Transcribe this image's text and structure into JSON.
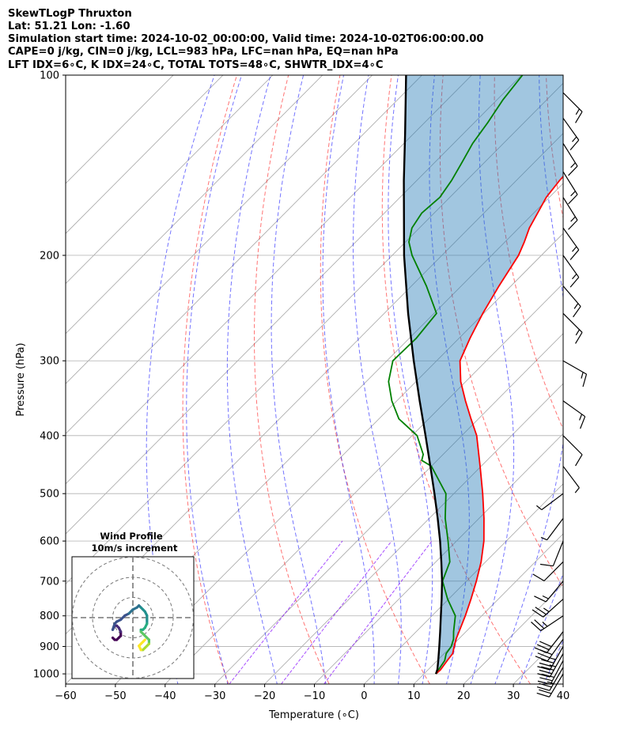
{
  "title_lines": [
    "SkewTLogP Thruxton",
    "Lat: 51.21   Lon: -1.60",
    "Simulation start time: 2024-10-02_00:00:00, Valid time: 2024-10-02T06:00:00.00",
    "CAPE=0 j/kg, CIN=0 j/kg, LCL=983 hPa, LFC=nan hPa, EQ=nan hPa",
    "LFT IDX=6∘C, K IDX=24∘C, TOTAL TOTS=48∘C, SHWTR_IDX=4∘C"
  ],
  "chart_data": {
    "type": "skewt-logp",
    "xlabel": "Temperature (∘C)",
    "ylabel": "Pressure (hPa)",
    "xlim": [
      -60,
      40
    ],
    "ylim": [
      1040,
      100
    ],
    "x_ticks": [
      -60,
      -50,
      -40,
      -30,
      -20,
      -10,
      0,
      10,
      20,
      30,
      40
    ],
    "x_tick_labels": [
      "−60",
      "−50",
      "−40",
      "−30",
      "−20",
      "−10",
      "0",
      "10",
      "20",
      "30",
      "40"
    ],
    "y_ticks": [
      1000,
      900,
      800,
      700,
      600,
      500,
      400,
      300,
      200,
      100
    ],
    "y_tick_labels": [
      "1000",
      "900",
      "800",
      "700",
      "600",
      "500",
      "400",
      "300",
      "200",
      "100"
    ],
    "grid": true,
    "colors": {
      "temperature": "#ff0000",
      "dewpoint": "#008000",
      "parcel": "#000000",
      "cin_cape_fill": "#1f77b4",
      "dry_adiabats": "#ff0000",
      "moist_adiabats": "#0000ff",
      "mixing_ratio": "#8000ff",
      "isotherms": "#808080"
    },
    "temperature_profile": {
      "pressure": [
        1000,
        985,
        950,
        925,
        900,
        875,
        850,
        800,
        750,
        700,
        650,
        600,
        550,
        500,
        450,
        400,
        375,
        350,
        325,
        300,
        275,
        250,
        225,
        200,
        190,
        180,
        170,
        160,
        150,
        140,
        130,
        120,
        110,
        100
      ],
      "temperature": [
        12.4,
        12.5,
        12.0,
        11.7,
        10.6,
        9.5,
        8.6,
        6.7,
        4.5,
        2.0,
        -0.9,
        -4.5,
        -9.0,
        -14.2,
        -20.2,
        -27.0,
        -31.5,
        -36.2,
        -41.0,
        -45.3,
        -47.8,
        -50.2,
        -52.4,
        -54.6,
        -56.1,
        -57.9,
        -59.2,
        -60.6,
        -61.3,
        -61.6,
        -61.5,
        -61.4,
        -61.2,
        -61.0
      ]
    },
    "dewpoint_profile": {
      "pressure": [
        1000,
        985,
        950,
        925,
        900,
        875,
        850,
        800,
        750,
        700,
        650,
        600,
        550,
        500,
        450,
        440,
        430,
        400,
        375,
        350,
        325,
        300,
        275,
        250,
        225,
        200,
        190,
        180,
        170,
        160,
        150,
        140,
        130,
        120,
        110,
        100
      ],
      "dewpoint": [
        12.3,
        12.1,
        11.5,
        10.4,
        10.0,
        9.0,
        7.5,
        4.7,
        -0.2,
        -4.8,
        -7.2,
        -11.7,
        -16.8,
        -21.6,
        -30.0,
        -33.1,
        -34.0,
        -39.0,
        -46.0,
        -51.0,
        -55.5,
        -58.8,
        -58.6,
        -59.5,
        -67.0,
        -76.0,
        -79.3,
        -81.5,
        -82.5,
        -82.0,
        -83.0,
        -84.5,
        -86.2,
        -87.3,
        -88.8,
        -89.8
      ]
    },
    "parcel_profile": {
      "pressure": [
        1000,
        983,
        950,
        900,
        850,
        800,
        750,
        700,
        650,
        600,
        550,
        500,
        450,
        400,
        350,
        300,
        250,
        200,
        150,
        125,
        100
      ],
      "temperature": [
        12.4,
        11.8,
        10.2,
        7.6,
        4.8,
        1.8,
        -1.4,
        -4.9,
        -8.9,
        -13.3,
        -18.3,
        -23.9,
        -30.2,
        -37.3,
        -45.4,
        -54.6,
        -65.2,
        -77.6,
        -92.6,
        -101.8,
        -113.2
      ]
    },
    "isotherms": [
      -160,
      -150,
      -140,
      -130,
      -120,
      -110,
      -100,
      -90,
      -80,
      -70,
      -60,
      -50,
      -40,
      -30,
      -20,
      -10,
      0,
      10,
      20,
      30,
      40
    ],
    "dry_adiabats": [
      -30,
      -10,
      10,
      30,
      50,
      70,
      90,
      110,
      130,
      150
    ],
    "moist_adiabats": [
      -40,
      -30,
      -20,
      -10,
      0,
      5,
      10,
      15,
      20,
      25,
      30,
      35,
      40
    ],
    "mixing_ratio_lines": [
      0.0004,
      0.001,
      0.002
    ],
    "wind_barbs": [
      {
        "pressure": 1000,
        "u": 6,
        "v": 10
      },
      {
        "pressure": 975,
        "u": 7,
        "v": 12
      },
      {
        "pressure": 950,
        "u": 8,
        "v": 15
      },
      {
        "pressure": 925,
        "u": 9,
        "v": 16
      },
      {
        "pressure": 900,
        "u": 9,
        "v": 16
      },
      {
        "pressure": 875,
        "u": 10,
        "v": 14
      },
      {
        "pressure": 850,
        "u": 10,
        "v": 13
      },
      {
        "pressure": 800,
        "u": 12,
        "v": 8
      },
      {
        "pressure": 750,
        "u": 10,
        "v": 9
      },
      {
        "pressure": 700,
        "u": 5,
        "v": 6
      },
      {
        "pressure": 650,
        "u": 4,
        "v": 4
      },
      {
        "pressure": 600,
        "u": 2,
        "v": 5
      },
      {
        "pressure": 550,
        "u": 3,
        "v": 4
      },
      {
        "pressure": 500,
        "u": 4,
        "v": 3
      },
      {
        "pressure": 450,
        "u": -3,
        "v": 4
      },
      {
        "pressure": 400,
        "u": -5,
        "v": 5
      },
      {
        "pressure": 350,
        "u": -7,
        "v": 5
      },
      {
        "pressure": 300,
        "u": -7,
        "v": 4
      },
      {
        "pressure": 250,
        "u": -7,
        "v": 7
      },
      {
        "pressure": 225,
        "u": -6,
        "v": 7
      },
      {
        "pressure": 200,
        "u": -5,
        "v": 7
      },
      {
        "pressure": 180,
        "u": -5,
        "v": 7
      },
      {
        "pressure": 160,
        "u": -5,
        "v": 8
      },
      {
        "pressure": 145,
        "u": -5,
        "v": 8
      },
      {
        "pressure": 130,
        "u": -5,
        "v": 8
      },
      {
        "pressure": 118,
        "u": -5,
        "v": 7
      },
      {
        "pressure": 107,
        "u": -6,
        "v": 6
      }
    ],
    "hodograph": {
      "title": "Wind Profile",
      "subtitle": "10m/s increment",
      "rings": [
        10,
        20,
        30
      ],
      "u": [
        -10,
        -9,
        -8,
        -7,
        -6,
        -6,
        -7,
        -8,
        -9,
        -10,
        -9,
        -8,
        -6,
        -4,
        -2,
        0,
        2,
        3,
        4,
        5,
        6,
        7,
        7,
        7,
        6,
        5,
        4,
        4,
        5,
        6,
        7,
        8,
        8,
        7,
        6,
        5,
        4,
        3,
        4,
        5,
        6
      ],
      "v": [
        -10,
        -11,
        -11,
        -10,
        -9,
        -7,
        -5,
        -4,
        -4,
        -6,
        -3,
        -2,
        -1,
        1,
        2,
        4,
        5,
        6,
        5,
        4,
        3,
        1,
        -1,
        -3,
        -5,
        -6,
        -6,
        -7,
        -8,
        -9,
        -10,
        -11,
        -13,
        -14,
        -15,
        -16,
        -16,
        -14,
        -13,
        -12,
        -11
      ]
    }
  }
}
